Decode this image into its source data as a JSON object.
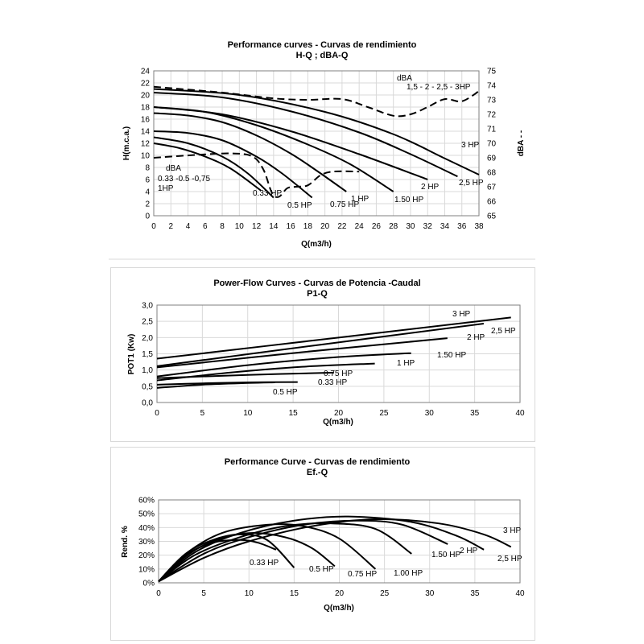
{
  "chart_data": [
    {
      "type": "line",
      "title": "Performance curves - Curvas de rendimiento",
      "subtitle": "H-Q ; dBA-Q",
      "xlabel": "Q(m3/h)",
      "ylabel": "H(m.c.a.)",
      "y2label": "dBA - -",
      "xlim": [
        0,
        38
      ],
      "ylim": [
        0,
        24
      ],
      "y2lim": [
        65,
        75
      ],
      "xticks": [
        "0",
        "2",
        "4",
        "6",
        "8",
        "10",
        "12",
        "14",
        "16",
        "18",
        "20",
        "22",
        "24",
        "26",
        "28",
        "30",
        "32",
        "34",
        "36",
        "38"
      ],
      "yticks": [
        "0",
        "2",
        "4",
        "6",
        "8",
        "10",
        "12",
        "14",
        "16",
        "18",
        "20",
        "22",
        "24"
      ],
      "y2ticks": [
        "65",
        "66",
        "67",
        "68",
        "69",
        "70",
        "71",
        "72",
        "73",
        "74",
        "75"
      ],
      "grid": true,
      "series": [
        {
          "name": "0.33 HP",
          "points": [
            [
              0,
              12
            ],
            [
              3,
              11.2
            ],
            [
              6,
              9.8
            ],
            [
              9,
              7.8
            ],
            [
              12.5,
              4.2
            ]
          ]
        },
        {
          "name": "0.5 HP",
          "points": [
            [
              0,
              13
            ],
            [
              4,
              12
            ],
            [
              8,
              9.8
            ],
            [
              11,
              7
            ],
            [
              14,
              3
            ]
          ]
        },
        {
          "name": "0.75 HP",
          "points": [
            [
              0,
              14
            ],
            [
              4,
              13.7
            ],
            [
              8,
              12.5
            ],
            [
              12,
              9.8
            ],
            [
              15,
              7
            ],
            [
              18.5,
              3
            ]
          ]
        },
        {
          "name": "1 HP",
          "points": [
            [
              0,
              17
            ],
            [
              4,
              16.6
            ],
            [
              8,
              15.5
            ],
            [
              12,
              13.3
            ],
            [
              16,
              10.3
            ],
            [
              19,
              7.5
            ],
            [
              22.5,
              4
            ]
          ]
        },
        {
          "name": "1.50 HP",
          "points": [
            [
              0,
              18
            ],
            [
              6,
              17.2
            ],
            [
              12,
              15
            ],
            [
              18,
              11.8
            ],
            [
              23,
              8.5
            ],
            [
              28,
              4
            ]
          ]
        },
        {
          "name": "2 HP",
          "points": [
            [
              0,
              18
            ],
            [
              8,
              16.8
            ],
            [
              16,
              14
            ],
            [
              24,
              10.2
            ],
            [
              32,
              6
            ]
          ]
        },
        {
          "name": "2,5 HP",
          "points": [
            [
              0,
              20.4
            ],
            [
              8,
              19.6
            ],
            [
              16,
              17.3
            ],
            [
              24,
              13.8
            ],
            [
              30,
              10.2
            ],
            [
              35.5,
              6.5
            ]
          ]
        },
        {
          "name": "3 HP",
          "points": [
            [
              0,
              21
            ],
            [
              10,
              20
            ],
            [
              20,
              17.2
            ],
            [
              28,
              13.5
            ],
            [
              34,
              9.5
            ],
            [
              38,
              6.8
            ]
          ]
        }
      ],
      "dba_series": [
        {
          "name": "dBA 1,5 - 2 - 2,5 - 3HP",
          "label": [
            "dBA",
            "1,5 - 2 - 2,5 - 3HP"
          ],
          "points": [
            [
              0,
              73.9
            ],
            [
              8,
              73.5
            ],
            [
              14,
              73.1
            ],
            [
              18,
              73
            ],
            [
              22,
              73.05
            ],
            [
              25,
              72.5
            ],
            [
              28,
              71.9
            ],
            [
              30,
              72
            ],
            [
              32,
              72.5
            ],
            [
              34,
              73.05
            ],
            [
              36,
              72.9
            ],
            [
              38,
              73.6
            ]
          ]
        },
        {
          "name": "dBA 0.33 -0.5 -0,75 1HP",
          "label": [
            "dBA",
            "0.33 -0.5 -0,75",
            "1HP"
          ],
          "points": [
            [
              0,
              69
            ],
            [
              5,
              69.2
            ],
            [
              9,
              69.3
            ],
            [
              11.5,
              69.1
            ],
            [
              12.8,
              68.2
            ],
            [
              13.8,
              66.6
            ],
            [
              14.6,
              66.3
            ],
            [
              15.6,
              66.9
            ],
            [
              16.6,
              67
            ],
            [
              18,
              67.1
            ],
            [
              19.5,
              67.8
            ],
            [
              21,
              68.05
            ],
            [
              24,
              68.05
            ]
          ]
        }
      ]
    },
    {
      "type": "line",
      "title": "Power-Flow  Curves -  Curvas de Potencia -Caudal",
      "subtitle": "P1-Q",
      "xlabel": "Q(m3/h)",
      "ylabel": "POT1 (Kw)",
      "xlim": [
        0,
        40
      ],
      "ylim": [
        0,
        3
      ],
      "xticks": [
        "0",
        "5",
        "10",
        "15",
        "20",
        "25",
        "30",
        "35",
        "40"
      ],
      "yticks": [
        "0,0",
        "0,5",
        "1,0",
        "1,5",
        "2,0",
        "2,5",
        "3,0"
      ],
      "grid": true,
      "series": [
        {
          "name": "0.5 HP",
          "points": [
            [
              0,
              0.45
            ],
            [
              5,
              0.55
            ],
            [
              10,
              0.6
            ],
            [
              13,
              0.62
            ]
          ]
        },
        {
          "name": "0.33 HP",
          "points": [
            [
              0,
              0.55
            ],
            [
              5,
              0.59
            ],
            [
              10,
              0.62
            ],
            [
              15.5,
              0.63
            ]
          ]
        },
        {
          "name": "0.75 HP",
          "points": [
            [
              0,
              0.75
            ],
            [
              10,
              0.85
            ],
            [
              19.5,
              0.92
            ]
          ]
        },
        {
          "name": "1 HP",
          "points": [
            [
              0,
              0.68
            ],
            [
              8,
              0.92
            ],
            [
              16,
              1.1
            ],
            [
              24,
              1.2
            ]
          ]
        },
        {
          "name": "1.50 HP",
          "points": [
            [
              0,
              0.8
            ],
            [
              10,
              1.15
            ],
            [
              20,
              1.4
            ],
            [
              28,
              1.52
            ]
          ]
        },
        {
          "name": "2 HP",
          "points": [
            [
              0,
              1.08
            ],
            [
              16,
              1.55
            ],
            [
              32,
              1.98
            ]
          ]
        },
        {
          "name": "2,5 HP",
          "points": [
            [
              0,
              1.12
            ],
            [
              18,
              1.78
            ],
            [
              36,
              2.43
            ]
          ]
        },
        {
          "name": "3 HP",
          "points": [
            [
              0,
              1.35
            ],
            [
              20,
              2.0
            ],
            [
              39,
              2.62
            ]
          ]
        }
      ]
    },
    {
      "type": "line",
      "title": "Performance Curve - Curvas de rendimiento",
      "subtitle": "Ef.-Q",
      "xlabel": "Q(m3/h)",
      "ylabel": "Rend. %",
      "xlim": [
        0,
        40
      ],
      "ylim": [
        0,
        60
      ],
      "xticks": [
        "0",
        "5",
        "10",
        "15",
        "20",
        "25",
        "30",
        "35",
        "40"
      ],
      "yticks": [
        "0%",
        "10%",
        "20%",
        "30%",
        "40%",
        "50%",
        "60%"
      ],
      "grid": true,
      "series": [
        {
          "name": "0.33 HP",
          "points": [
            [
              0,
              1
            ],
            [
              3,
              20
            ],
            [
              6,
              29
            ],
            [
              9,
              31
            ],
            [
              11,
              29
            ],
            [
              13,
              24
            ]
          ]
        },
        {
          "name": "0.5 HP",
          "points": [
            [
              0,
              1
            ],
            [
              3,
              21
            ],
            [
              6,
              31
            ],
            [
              9,
              35
            ],
            [
              12,
              31
            ],
            [
              15,
              11
            ]
          ]
        },
        {
          "name": "0.75 HP",
          "points": [
            [
              0,
              1
            ],
            [
              3,
              19
            ],
            [
              6,
              30
            ],
            [
              10,
              36
            ],
            [
              14,
              33
            ],
            [
              17,
              25
            ],
            [
              19.5,
              12
            ]
          ]
        },
        {
          "name": "1.00 HP",
          "points": [
            [
              0,
              1
            ],
            [
              3,
              21
            ],
            [
              7,
              36
            ],
            [
              12,
              42
            ],
            [
              16,
              41
            ],
            [
              20,
              32
            ],
            [
              24,
              10
            ]
          ]
        },
        {
          "name": "1.50 HP",
          "points": [
            [
              0,
              1
            ],
            [
              4,
              20
            ],
            [
              9,
              33
            ],
            [
              14,
              41
            ],
            [
              19,
              43
            ],
            [
              24,
              39
            ],
            [
              28,
              21
            ]
          ]
        },
        {
          "name": "2 HP",
          "points": [
            [
              0,
              1
            ],
            [
              5,
              21
            ],
            [
              10,
              33
            ],
            [
              16,
              42
            ],
            [
              22,
              45
            ],
            [
              27,
              42
            ],
            [
              32,
              28
            ]
          ]
        },
        {
          "name": "2,5 HP",
          "points": [
            [
              0,
              1
            ],
            [
              4,
              22
            ],
            [
              9,
              36
            ],
            [
              15,
              45
            ],
            [
              21,
              48
            ],
            [
              28,
              44
            ],
            [
              33,
              34
            ],
            [
              36,
              24
            ]
          ]
        },
        {
          "name": "3 HP",
          "points": [
            [
              0,
              1
            ],
            [
              5,
              18
            ],
            [
              10,
              30
            ],
            [
              17,
              41
            ],
            [
              24,
              46
            ],
            [
              31,
              43
            ],
            [
              36,
              35
            ],
            [
              39,
              26
            ]
          ]
        }
      ]
    }
  ]
}
